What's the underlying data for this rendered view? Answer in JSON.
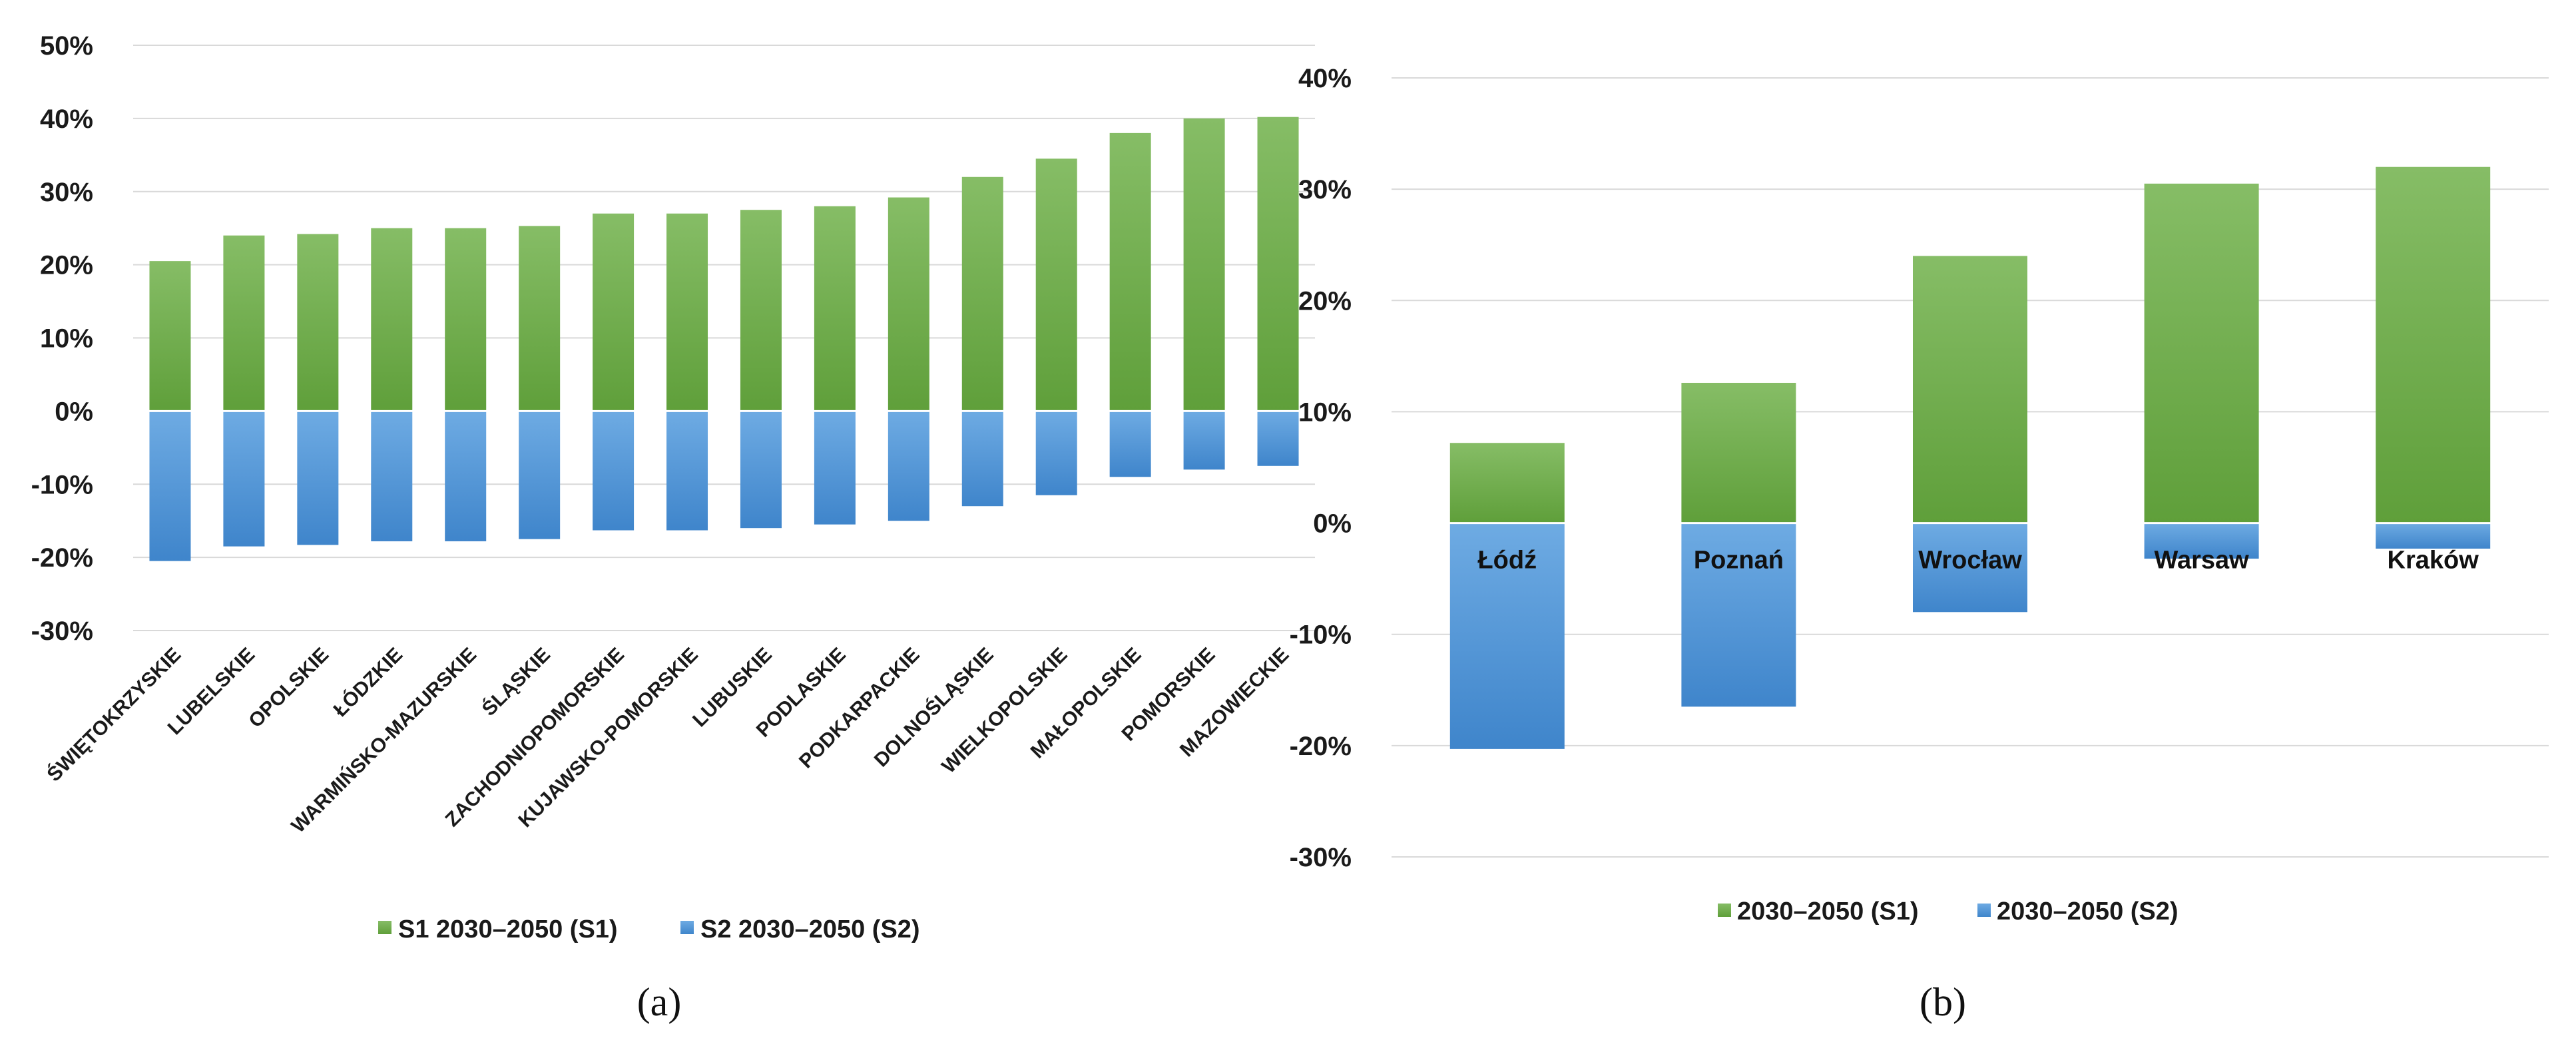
{
  "chart_data": [
    {
      "type": "bar",
      "stacked": true,
      "panel_label": "(a)",
      "categories": [
        "ŚWIĘTOKRZYSKIE",
        "LUBELSKIE",
        "OPOLSKIE",
        "ŁÓDZKIE",
        "WARMIŃSKO-MAZURSKIE",
        "ŚLĄSKIE",
        "ZACHODNIOPOMORSKIE",
        "KUJAWSKO-POMORSKIE",
        "LUBUSKIE",
        "PODLASKIE",
        "PODKARPACKIE",
        "DOLNOŚLĄSKIE",
        "WIELKOPOLSKIE",
        "MAŁOPOLSKIE",
        "POMORSKIE",
        "MAZOWIECKIE"
      ],
      "series": [
        {
          "name": "S1 2030–2050 (S1)",
          "values": [
            20.5,
            24,
            24.2,
            25,
            25,
            25.3,
            27,
            27,
            27.5,
            28,
            29.2,
            32,
            34.5,
            38,
            40,
            40.2
          ]
        },
        {
          "name": "S2 2030–2050 (S2)",
          "values": [
            -20.5,
            -18.5,
            -18.3,
            -17.8,
            -17.8,
            -17.5,
            -16.3,
            -16.3,
            -16,
            -15.5,
            -15,
            -13,
            -11.5,
            -9,
            -8,
            -7.5
          ]
        }
      ],
      "ylim": [
        -30,
        50
      ],
      "yticks": [
        "50%",
        "40%",
        "30%",
        "20%",
        "10%",
        "0%",
        "-10%",
        "-20%",
        "-30%"
      ],
      "ytick_values": [
        50,
        40,
        30,
        20,
        10,
        0,
        -10,
        -20,
        -30
      ],
      "colors": {
        "s1": "#70ad47",
        "s2": "#5b9bd5"
      },
      "legend": [
        "S1 2030–2050 (S1)",
        "S2 2030–2050 (S2)"
      ],
      "legend_position": "bottom",
      "xlabel": "",
      "ylabel": ""
    },
    {
      "type": "bar",
      "stacked": true,
      "panel_label": "(b)",
      "categories": [
        "Łódź",
        "Poznań",
        "Wrocław",
        "Warsaw",
        "Kraków"
      ],
      "series": [
        {
          "name": "2030–2050 (S1)",
          "values": [
            7.2,
            12.6,
            24,
            30.5,
            32
          ]
        },
        {
          "name": "2030–2050 (S2)",
          "values": [
            -20.3,
            -16.5,
            -8,
            -3.2,
            -2.3
          ]
        }
      ],
      "ylim": [
        -30,
        40
      ],
      "yticks": [
        "40%",
        "30%",
        "20%",
        "10%",
        "0%",
        "-10%",
        "-20%",
        "-30%"
      ],
      "ytick_values": [
        40,
        30,
        20,
        10,
        0,
        -10,
        -20,
        -30
      ],
      "colors": {
        "s1": "#70ad47",
        "s2": "#5b9bd5"
      },
      "legend": [
        "2030–2050 (S1)",
        "2030–2050 (S2)"
      ],
      "legend_position": "bottom",
      "xlabel": "",
      "ylabel": ""
    }
  ]
}
